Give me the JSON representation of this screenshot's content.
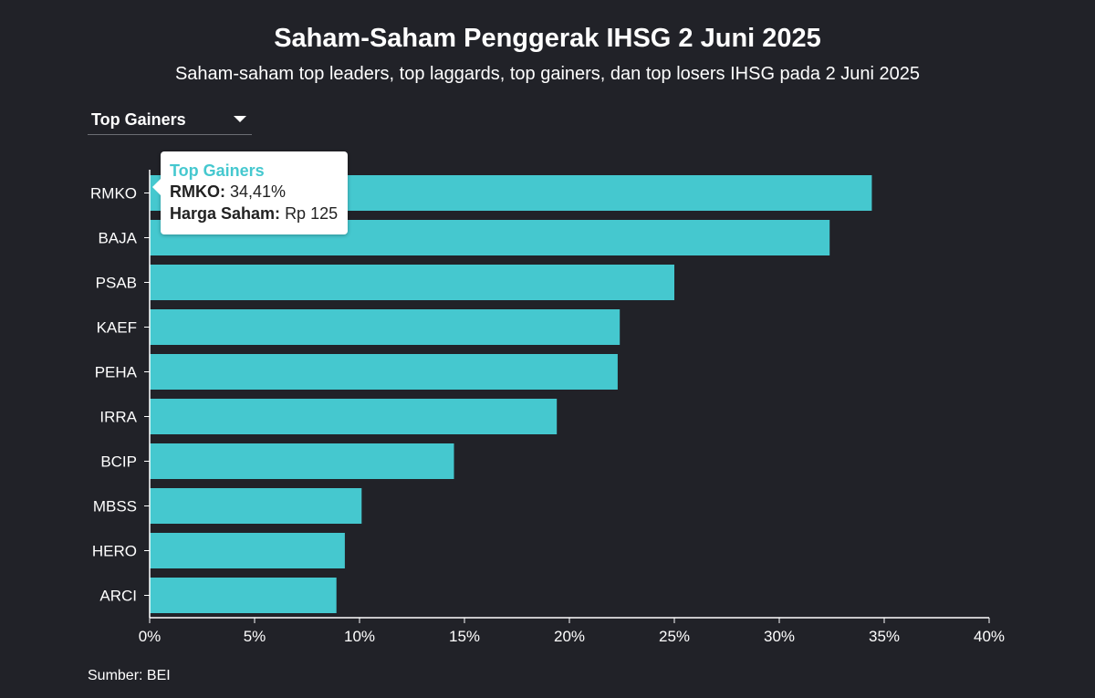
{
  "header": {
    "title": "Saham-Saham Penggerak IHSG 2 Juni 2025",
    "subtitle": "Saham-saham top leaders, top laggards, top gainers, dan top losers IHSG pada 2 Juni 2025"
  },
  "dropdown": {
    "selected": "Top Gainers"
  },
  "tooltip": {
    "title": "Top Gainers",
    "ticker_label": "RMKO:",
    "ticker_value": "34,41%",
    "price_label": "Harga Saham:",
    "price_value": "Rp 125"
  },
  "footer": {
    "source": "Sumber: BEI"
  },
  "colors": {
    "background": "#212228",
    "bar": "#45c8cf",
    "axis": "#ffffff",
    "tooltip_accent": "#45c8cf"
  },
  "chart_data": {
    "type": "bar",
    "orientation": "horizontal",
    "categories": [
      "RMKO",
      "BAJA",
      "PSAB",
      "KAEF",
      "PEHA",
      "IRRA",
      "BCIP",
      "MBSS",
      "HERO",
      "ARCI"
    ],
    "values": [
      34.41,
      32.4,
      25.0,
      22.4,
      22.3,
      19.4,
      14.5,
      10.1,
      9.3,
      8.9
    ],
    "xlim": [
      0,
      40
    ],
    "xticks": [
      "0%",
      "5%",
      "10%",
      "15%",
      "20%",
      "25%",
      "30%",
      "35%",
      "40%"
    ],
    "xtick_values": [
      0,
      5,
      10,
      15,
      20,
      25,
      30,
      35,
      40
    ],
    "grid": false,
    "legend": "none"
  }
}
